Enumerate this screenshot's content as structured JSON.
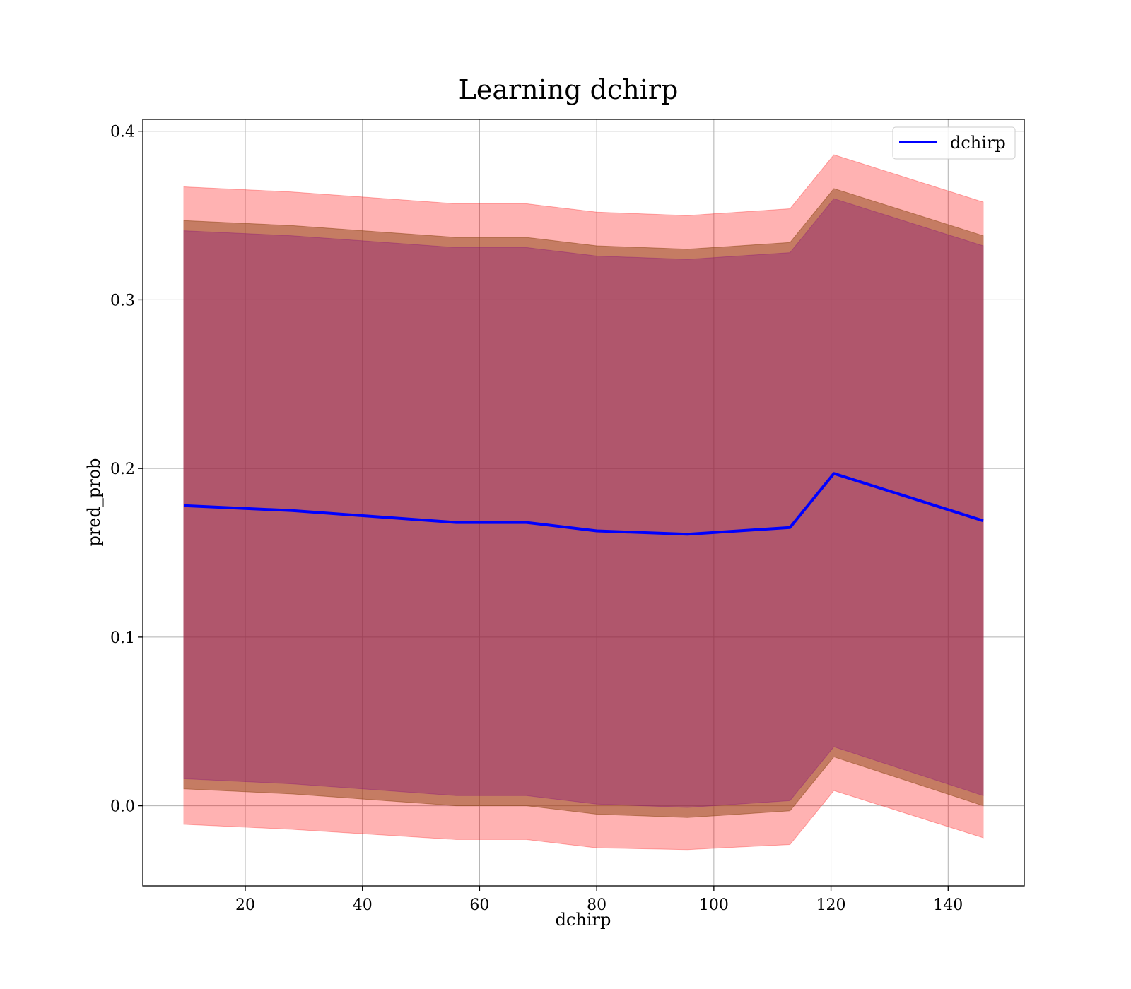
{
  "chart_data": {
    "type": "line",
    "title": "Learning dchirp",
    "xlabel": "dchirp",
    "ylabel": "pred_prob",
    "xlim": [
      2.5,
      153
    ],
    "ylim": [
      -0.0475,
      0.407
    ],
    "xticks": [
      20,
      40,
      60,
      80,
      100,
      120,
      140
    ],
    "yticks": [
      0.0,
      0.1,
      0.2,
      0.3,
      0.4
    ],
    "xtick_labels": [
      "20",
      "40",
      "60",
      "80",
      "100",
      "120",
      "140"
    ],
    "ytick_labels": [
      "0.0",
      "0.1",
      "0.2",
      "0.3",
      "0.4"
    ],
    "grid": true,
    "legend_position": "top-right",
    "x": [
      9.5,
      28,
      56,
      68,
      80,
      95.5,
      113,
      120.5,
      146
    ],
    "series": [
      {
        "name": "dchirp",
        "color": "#0000ff",
        "values": [
          0.178,
          0.175,
          0.168,
          0.168,
          0.163,
          0.161,
          0.165,
          0.197,
          0.169
        ]
      }
    ],
    "bands": [
      {
        "color": "#ff0000",
        "opacity": 0.3,
        "lower": [
          -0.011,
          -0.014,
          -0.02,
          -0.02,
          -0.025,
          -0.026,
          -0.023,
          0.009,
          -0.019
        ],
        "upper": [
          0.367,
          0.364,
          0.357,
          0.357,
          0.352,
          0.35,
          0.354,
          0.386,
          0.358
        ]
      },
      {
        "color": "#8b4513",
        "opacity": 0.5,
        "lower": [
          0.01,
          0.007,
          0.0,
          0.0,
          -0.005,
          -0.007,
          -0.003,
          0.029,
          0.0
        ],
        "upper": [
          0.347,
          0.344,
          0.337,
          0.337,
          0.332,
          0.33,
          0.334,
          0.366,
          0.338
        ]
      },
      {
        "color": "#800080",
        "opacity": 0.3,
        "lower": [
          0.016,
          0.013,
          0.006,
          0.006,
          0.001,
          -0.001,
          0.003,
          0.035,
          0.006
        ],
        "upper": [
          0.341,
          0.338,
          0.331,
          0.331,
          0.326,
          0.324,
          0.328,
          0.36,
          0.332
        ]
      }
    ]
  }
}
